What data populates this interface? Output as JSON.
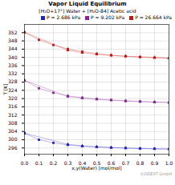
{
  "chart_data": {
    "type": "line",
    "title": "Vapor Liquid Equilibrium",
    "subtitle": "[H₂O+17°] Water + [H₂O-84] Acetic acid",
    "x_label": "x,y(Water) [mol/mol]",
    "y_label": "T [K]",
    "annotations": [
      "©ODEST GmbH"
    ],
    "xlim": [
      0.0,
      1.0
    ],
    "ylim": [
      293,
      356
    ],
    "xticks": [
      {
        "value": 0.0,
        "label": "0.0"
      },
      0.1,
      0.2,
      0.3,
      0.4,
      0.5,
      0.6,
      0.7,
      0.8,
      0.9,
      {
        "value": 1.0,
        "label": "1.0"
      }
    ],
    "yticks": [
      296,
      300,
      304,
      308,
      312,
      316,
      320,
      324,
      328,
      332,
      336,
      340,
      344,
      348,
      352
    ],
    "grid": true,
    "legend": "upper right",
    "series": [
      {
        "name": "P = 2.686 kPa",
        "color": "#2222cc",
        "marker": "square",
        "x": [
          0.0,
          0.1,
          0.2,
          0.3,
          0.4,
          0.5,
          0.6,
          0.7,
          0.8,
          0.9,
          1.0
        ],
        "values": [
          303.2,
          300.0,
          298.5,
          297.5,
          296.9,
          296.5,
          296.2,
          296.0,
          295.8,
          295.6,
          295.5
        ]
      },
      {
        "name": "P = 2.686 kPa",
        "color": "#2222cc",
        "marker": "triangle",
        "x": [
          0.0,
          0.3,
          0.4,
          0.5,
          0.6,
          0.7,
          0.8,
          0.9,
          1.0
        ],
        "values": [
          303.2,
          297.8,
          297.0,
          296.6,
          296.2,
          295.9,
          295.7,
          295.6,
          295.5
        ]
      },
      {
        "name": "P = 9.202 kPa",
        "color": "#882299",
        "marker": "square",
        "x": [
          0.0,
          0.1,
          0.2,
          0.3,
          0.4,
          0.5,
          0.6,
          0.7,
          0.8,
          0.9,
          1.0
        ],
        "values": [
          328.8,
          325.0,
          322.8,
          321.3,
          320.4,
          319.8,
          319.3,
          318.9,
          318.6,
          318.3,
          318.1
        ]
      },
      {
        "name": "P = 9.202 kPa",
        "color": "#882299",
        "marker": "triangle",
        "x": [
          0.0,
          0.3,
          0.4,
          0.5,
          0.6,
          0.7,
          0.8,
          0.9,
          1.0
        ],
        "values": [
          328.8,
          321.0,
          320.2,
          319.6,
          319.2,
          318.8,
          318.5,
          318.3,
          318.1
        ]
      },
      {
        "name": "P = 26.664 kPa",
        "color": "#cc1111",
        "marker": "square",
        "x": [
          0.0,
          0.1,
          0.2,
          0.3,
          0.4,
          0.5,
          0.6,
          0.7,
          0.8,
          0.9,
          1.0
        ],
        "values": [
          352.2,
          348.5,
          346.0,
          344.1,
          342.8,
          341.8,
          341.0,
          340.5,
          340.1,
          339.8,
          339.6
        ]
      },
      {
        "name": "P = 26.664 kPa",
        "color": "#cc1111",
        "marker": "triangle",
        "x": [
          0.0,
          0.3,
          0.4,
          0.5,
          0.6,
          0.7,
          0.8,
          0.9,
          1.0
        ],
        "values": [
          352.2,
          343.5,
          342.3,
          341.5,
          341.0,
          340.6,
          340.3,
          340.0,
          339.6
        ]
      }
    ]
  }
}
